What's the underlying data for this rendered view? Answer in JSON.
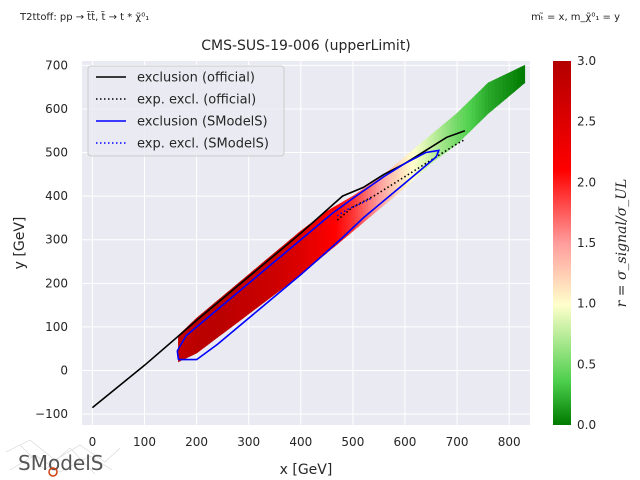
{
  "header": {
    "left_note": "T2ttoff: pp → t̃t̃, t̃ → t * χ̃⁰₁",
    "right_note": "mₜ̃ = x, m_χ̃⁰₁ = y"
  },
  "logo_text": "SModelS",
  "chart_data": {
    "type": "heatmap",
    "title": "CMS-SUS-19-006 (upperLimit)",
    "xlabel": "x [GeV]",
    "ylabel": "y [GeV]",
    "xlim": [
      -20,
      840
    ],
    "ylim": [
      -125,
      710
    ],
    "xticks": [
      0,
      100,
      200,
      300,
      400,
      500,
      600,
      700,
      800
    ],
    "yticks": [
      -100,
      0,
      100,
      200,
      300,
      400,
      500,
      600,
      700
    ],
    "colorbar": {
      "label": "r = σ_signal/σ_UL",
      "range": [
        0.0,
        3.0
      ],
      "ticks": [
        0.0,
        0.5,
        1.0,
        1.5,
        2.0,
        2.5,
        3.0
      ],
      "colors": [
        "#007a00",
        "#ffffcc",
        "#ff0000",
        "#b30000"
      ]
    },
    "grid": true,
    "legend": {
      "position": "top-left",
      "entries": [
        {
          "label": "exclusion (official)",
          "color": "#000000",
          "style": "solid"
        },
        {
          "label": "exp. excl. (official)",
          "color": "#000000",
          "style": "dotted"
        },
        {
          "label": "exclusion (SModelS)",
          "color": "#0000ff",
          "style": "solid"
        },
        {
          "label": "exp. excl. (SModelS)",
          "color": "#0000ff",
          "style": "dotted"
        }
      ]
    },
    "heatmap_band": [
      {
        "x": 165,
        "y_low": 20,
        "y_high": 80,
        "r": 2.8
      },
      {
        "x": 200,
        "y_low": 40,
        "y_high": 120,
        "r": 2.9
      },
      {
        "x": 250,
        "y_low": 85,
        "y_high": 170,
        "r": 2.9
      },
      {
        "x": 300,
        "y_low": 130,
        "y_high": 220,
        "r": 2.8
      },
      {
        "x": 350,
        "y_low": 175,
        "y_high": 270,
        "r": 2.7
      },
      {
        "x": 400,
        "y_low": 220,
        "y_high": 320,
        "r": 2.5
      },
      {
        "x": 450,
        "y_low": 270,
        "y_high": 365,
        "r": 2.2
      },
      {
        "x": 500,
        "y_low": 320,
        "y_high": 400,
        "r": 1.9
      },
      {
        "x": 550,
        "y_low": 370,
        "y_high": 440,
        "r": 1.5
      },
      {
        "x": 600,
        "y_low": 420,
        "y_high": 490,
        "r": 1.1
      },
      {
        "x": 650,
        "y_low": 475,
        "y_high": 540,
        "r": 0.8
      },
      {
        "x": 700,
        "y_low": 520,
        "y_high": 590,
        "r": 0.5
      },
      {
        "x": 760,
        "y_low": 590,
        "y_high": 660,
        "r": 0.2
      },
      {
        "x": 830,
        "y_low": 660,
        "y_high": 700,
        "r": 0.0
      }
    ],
    "series": [
      {
        "name": "exclusion (official)",
        "color": "#000000",
        "style": "solid",
        "x": [
          0,
          100,
          200,
          300,
          400,
          480,
          520,
          560,
          600,
          640,
          680,
          715
        ],
        "y": [
          -85,
          12,
          115,
          215,
          315,
          400,
          420,
          450,
          475,
          505,
          535,
          550
        ]
      },
      {
        "name": "exp. excl. (official)",
        "color": "#000000",
        "style": "dotted",
        "x": [
          470,
          500,
          540,
          580,
          620,
          660,
          700,
          715
        ],
        "y": [
          345,
          375,
          400,
          430,
          460,
          490,
          520,
          530
        ]
      },
      {
        "name": "exclusion (SModelS)",
        "color": "#0000ff",
        "style": "solid",
        "x": [
          165,
          163,
          180,
          220,
          260,
          300,
          340,
          380,
          420,
          460,
          500,
          530,
          560,
          600,
          640,
          665,
          660,
          640,
          600,
          560,
          520,
          480,
          440,
          400,
          360,
          320,
          280,
          240,
          200,
          175,
          165
        ],
        "y": [
          25,
          45,
          80,
          120,
          160,
          200,
          240,
          280,
          320,
          360,
          395,
          420,
          445,
          475,
          500,
          505,
          490,
          470,
          430,
          390,
          350,
          305,
          262,
          220,
          180,
          140,
          100,
          60,
          25,
          25,
          25
        ]
      },
      {
        "name": "exp. excl. (SModelS)",
        "color": "#0000ff",
        "style": "dotted",
        "x": [
          470,
          490,
          510,
          535
        ],
        "y": [
          355,
          370,
          380,
          395
        ]
      }
    ]
  }
}
